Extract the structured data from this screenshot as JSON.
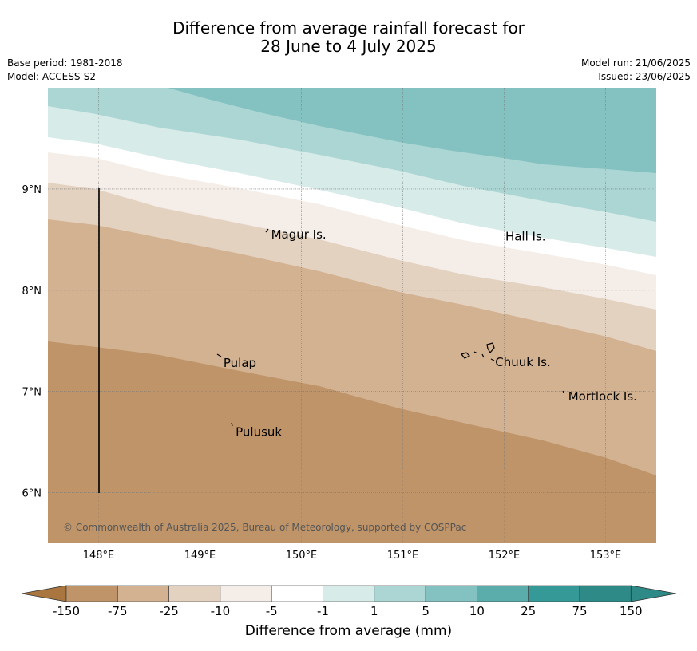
{
  "header": {
    "title_line1": "Difference from average rainfall forecast for",
    "title_line2": "28 June to 4 July 2025",
    "base_period": "Base period: 1981-2018",
    "model": "Model: ACCESS-S2",
    "model_run": "Model run: 21/06/2025",
    "issued": "Issued: 23/06/2025"
  },
  "map": {
    "lon_ticks": [
      "148°E",
      "149°E",
      "150°E",
      "151°E",
      "152°E",
      "153°E"
    ],
    "lat_ticks": [
      "9°N",
      "8°N",
      "7°N",
      "6°N"
    ],
    "places": [
      {
        "name": "Magur Is.",
        "lon": 149.67,
        "lat": 8.55
      },
      {
        "name": "Hall Is.",
        "lon": 151.98,
        "lat": 8.53
      },
      {
        "name": "Pulap",
        "lon": 149.2,
        "lat": 7.28
      },
      {
        "name": "Chuuk Is.",
        "lon": 151.88,
        "lat": 7.29
      },
      {
        "name": "Mortlock Is.",
        "lon": 152.6,
        "lat": 6.95
      },
      {
        "name": "Pulusuk",
        "lon": 149.32,
        "lat": 6.6
      }
    ],
    "copyright": "© Commonwealth of Australia 2025, Bureau of Meteorology, supported by COSPPac"
  },
  "colorbar": {
    "ticks": [
      "-150",
      "-75",
      "-25",
      "-10",
      "-5",
      "-1",
      "1",
      "5",
      "10",
      "25",
      "75",
      "150"
    ],
    "colors": [
      "#a97640",
      "#bf9469",
      "#d3b292",
      "#e4d2c1",
      "#f5eee8",
      "#ffffff",
      "#d7ebe9",
      "#acd6d4",
      "#84c2c1",
      "#5aadab",
      "#359a97",
      "#2d8a87"
    ],
    "title": "Difference from average (mm)"
  }
}
